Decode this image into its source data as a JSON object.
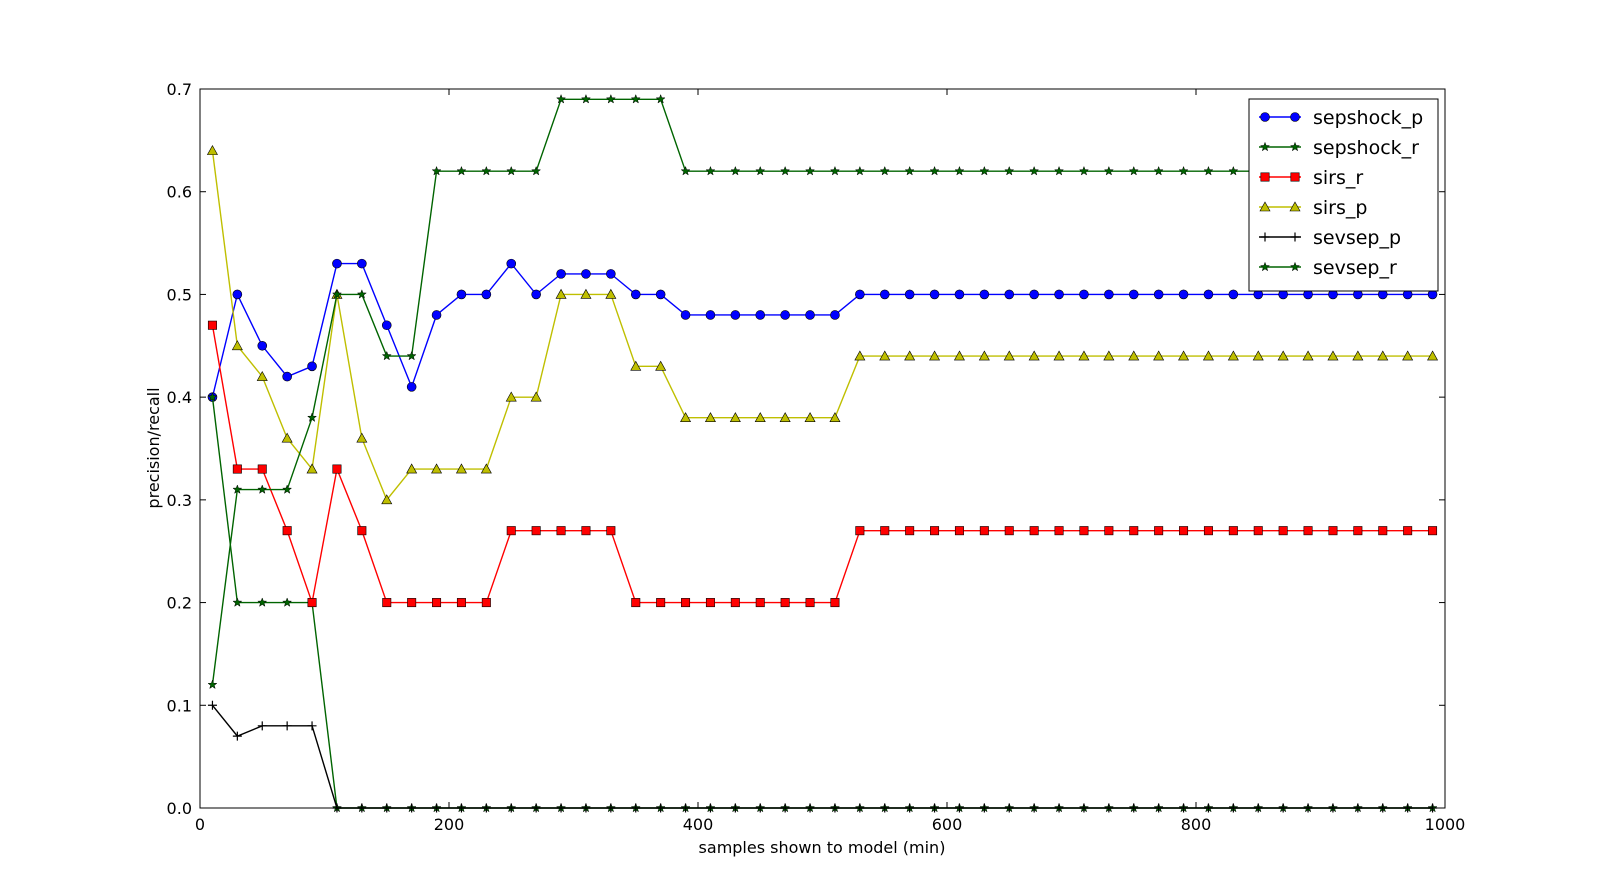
{
  "chart_data": {
    "type": "line",
    "xlabel": "samples shown to model (min)",
    "ylabel": "precision/recall",
    "xlim": [
      0,
      1000
    ],
    "ylim": [
      0,
      0.7
    ],
    "x_ticks": [
      0,
      200,
      400,
      600,
      800,
      1000
    ],
    "y_ticks": [
      0.0,
      0.1,
      0.2,
      0.3,
      0.4,
      0.5,
      0.6,
      0.7
    ],
    "x_tick_labels": [
      "0",
      "200",
      "400",
      "600",
      "800",
      "1000"
    ],
    "y_tick_labels": [
      "0.0",
      "0.1",
      "0.2",
      "0.3",
      "0.4",
      "0.5",
      "0.6",
      "0.7"
    ],
    "legend_position": "top-right",
    "x": [
      10,
      30,
      50,
      70,
      90,
      110,
      130,
      150,
      170,
      190,
      210,
      230,
      250,
      270,
      290,
      310,
      330,
      350,
      370,
      390,
      410,
      430,
      450,
      470,
      490,
      510,
      530,
      550,
      570,
      590,
      610,
      630,
      650,
      670,
      690,
      710,
      730,
      750,
      770,
      790,
      810,
      830,
      850,
      870,
      890,
      910,
      930,
      950,
      970,
      990
    ],
    "series": [
      {
        "name": "sepshock_p",
        "color": "#0000ff",
        "marker": "circle",
        "values": [
          0.4,
          0.5,
          0.45,
          0.42,
          0.43,
          0.53,
          0.53,
          0.47,
          0.41,
          0.48,
          0.5,
          0.5,
          0.53,
          0.5,
          0.52,
          0.52,
          0.52,
          0.5,
          0.5,
          0.48,
          0.48,
          0.48,
          0.48,
          0.48,
          0.48,
          0.48,
          0.5,
          0.5,
          0.5,
          0.5,
          0.5,
          0.5,
          0.5,
          0.5,
          0.5,
          0.5,
          0.5,
          0.5,
          0.5,
          0.5,
          0.5,
          0.5,
          0.5,
          0.5,
          0.5,
          0.5,
          0.5,
          0.5,
          0.5,
          0.5
        ]
      },
      {
        "name": "sepshock_r",
        "color": "#006400",
        "marker": "star",
        "values": [
          0.4,
          0.2,
          0.2,
          0.2,
          0.2,
          0.0,
          0.0,
          0.0,
          0.0,
          0.0,
          0.0,
          0.0,
          0.0,
          0.0,
          0.0,
          0.0,
          0.0,
          0.0,
          0.0,
          0.0,
          0.0,
          0.0,
          0.0,
          0.0,
          0.0,
          0.0,
          0.0,
          0.0,
          0.0,
          0.0,
          0.0,
          0.0,
          0.0,
          0.0,
          0.0,
          0.0,
          0.0,
          0.0,
          0.0,
          0.0,
          0.0,
          0.0,
          0.0,
          0.0,
          0.0,
          0.0,
          0.0,
          0.0,
          0.0,
          0.0
        ]
      },
      {
        "name": "sirs_r",
        "color": "#ff0000",
        "marker": "square",
        "values": [
          0.47,
          0.33,
          0.33,
          0.27,
          0.2,
          0.33,
          0.27,
          0.2,
          0.2,
          0.2,
          0.2,
          0.2,
          0.27,
          0.27,
          0.27,
          0.27,
          0.27,
          0.2,
          0.2,
          0.2,
          0.2,
          0.2,
          0.2,
          0.2,
          0.2,
          0.2,
          0.27,
          0.27,
          0.27,
          0.27,
          0.27,
          0.27,
          0.27,
          0.27,
          0.27,
          0.27,
          0.27,
          0.27,
          0.27,
          0.27,
          0.27,
          0.27,
          0.27,
          0.27,
          0.27,
          0.27,
          0.27,
          0.27,
          0.27,
          0.27
        ]
      },
      {
        "name": "sirs_p",
        "color": "#bfbf00",
        "marker": "triangle",
        "values": [
          0.64,
          0.45,
          0.42,
          0.36,
          0.33,
          0.5,
          0.36,
          0.3,
          0.33,
          0.33,
          0.33,
          0.33,
          0.4,
          0.4,
          0.5,
          0.5,
          0.5,
          0.43,
          0.43,
          0.38,
          0.38,
          0.38,
          0.38,
          0.38,
          0.38,
          0.38,
          0.44,
          0.44,
          0.44,
          0.44,
          0.44,
          0.44,
          0.44,
          0.44,
          0.44,
          0.44,
          0.44,
          0.44,
          0.44,
          0.44,
          0.44,
          0.44,
          0.44,
          0.44,
          0.44,
          0.44,
          0.44,
          0.44,
          0.44,
          0.44
        ]
      },
      {
        "name": "sevsep_p",
        "color": "#000000",
        "marker": "plus",
        "values": [
          0.1,
          0.07,
          0.08,
          0.08,
          0.08,
          0.0,
          0.0,
          0.0,
          0.0,
          0.0,
          0.0,
          0.0,
          0.0,
          0.0,
          0.0,
          0.0,
          0.0,
          0.0,
          0.0,
          0.0,
          0.0,
          0.0,
          0.0,
          0.0,
          0.0,
          0.0,
          0.0,
          0.0,
          0.0,
          0.0,
          0.0,
          0.0,
          0.0,
          0.0,
          0.0,
          0.0,
          0.0,
          0.0,
          0.0,
          0.0,
          0.0,
          0.0,
          0.0,
          0.0,
          0.0,
          0.0,
          0.0,
          0.0,
          0.0,
          0.0
        ]
      },
      {
        "name": "sevsep_r",
        "color": "#006400",
        "marker": "star",
        "values": [
          0.12,
          0.31,
          0.31,
          0.31,
          0.38,
          0.5,
          0.5,
          0.44,
          0.44,
          0.62,
          0.62,
          0.62,
          0.62,
          0.62,
          0.69,
          0.69,
          0.69,
          0.69,
          0.69,
          0.62,
          0.62,
          0.62,
          0.62,
          0.62,
          0.62,
          0.62,
          0.62,
          0.62,
          0.62,
          0.62,
          0.62,
          0.62,
          0.62,
          0.62,
          0.62,
          0.62,
          0.62,
          0.62,
          0.62,
          0.62,
          0.62,
          0.62,
          0.62,
          0.62,
          0.62,
          0.62,
          0.62,
          0.62,
          0.62,
          0.62
        ]
      }
    ]
  }
}
